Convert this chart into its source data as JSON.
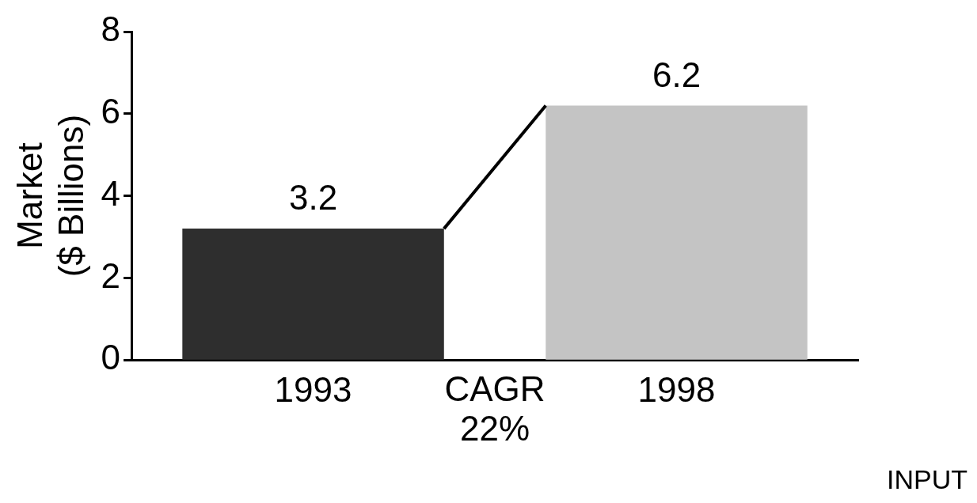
{
  "chart_data": {
    "type": "bar",
    "ylabel": "Market\n($ Billions)",
    "categories": [
      "1993",
      "1998"
    ],
    "values": [
      3.2,
      6.2
    ],
    "colors": [
      "#2e2e2e",
      "#c4c4c4"
    ],
    "ylim": [
      0,
      8
    ],
    "yticks": [
      0,
      2,
      4,
      6,
      8
    ],
    "grid": false,
    "legend": false,
    "data_labels": true,
    "annotations": [
      "CAGR\n22%",
      "INPUT"
    ]
  }
}
